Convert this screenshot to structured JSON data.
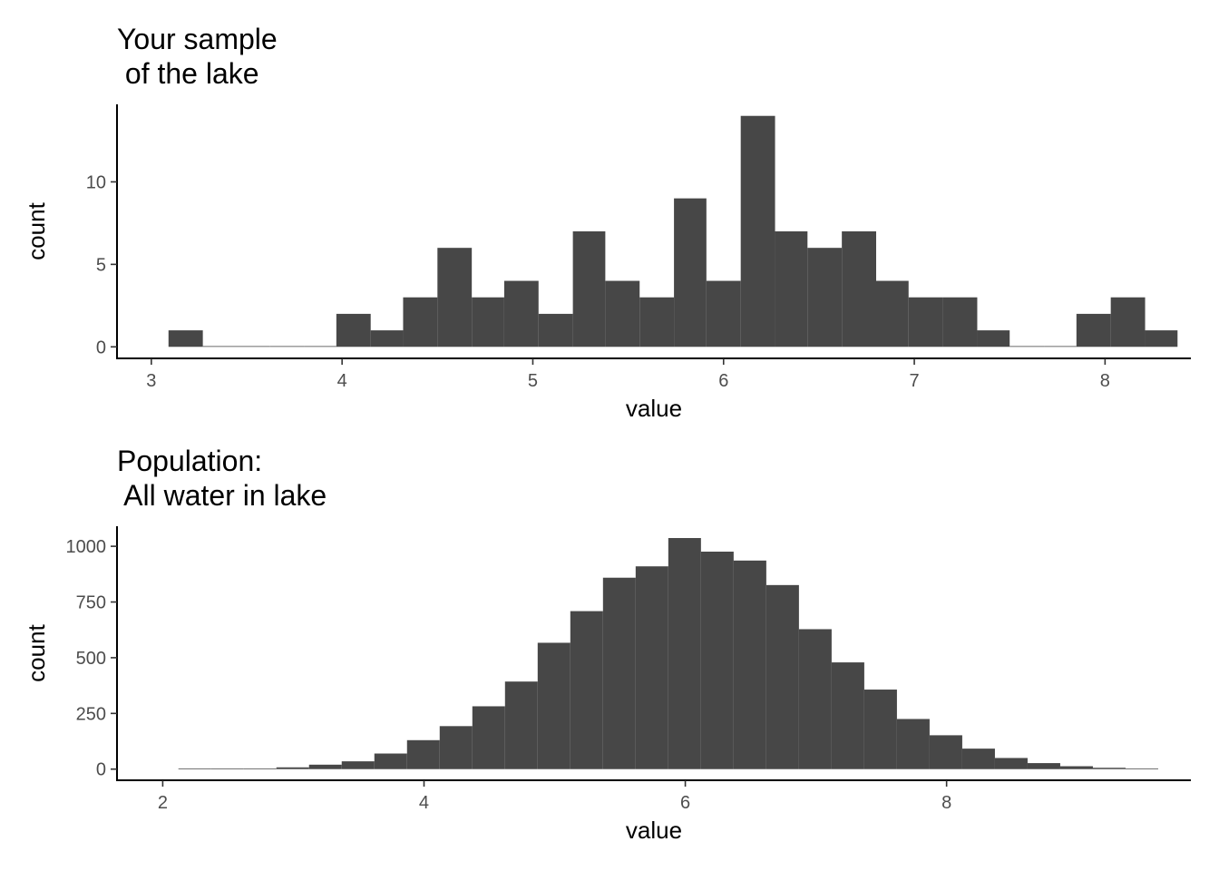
{
  "chart_data": [
    {
      "type": "bar",
      "title_line1": "Your sample",
      "title_line2": " of the lake",
      "xlabel": "value",
      "ylabel": "count",
      "xlim": [
        2.82,
        8.45
      ],
      "ylim": [
        -0.7,
        14.7
      ],
      "xticks": [
        3,
        4,
        5,
        6,
        7,
        8
      ],
      "yticks": [
        0,
        5,
        10
      ],
      "bar_color": "#474747",
      "bins": [
        {
          "x0": 3.09,
          "x1": 3.27,
          "count": 1
        },
        {
          "x0": 3.27,
          "x1": 3.45,
          "count": 0
        },
        {
          "x0": 3.45,
          "x1": 3.62,
          "count": 0
        },
        {
          "x0": 3.62,
          "x1": 3.8,
          "count": 0
        },
        {
          "x0": 3.8,
          "x1": 3.97,
          "count": 0
        },
        {
          "x0": 3.97,
          "x1": 4.15,
          "count": 2
        },
        {
          "x0": 4.15,
          "x1": 4.32,
          "count": 1
        },
        {
          "x0": 4.32,
          "x1": 4.5,
          "count": 3
        },
        {
          "x0": 4.5,
          "x1": 4.68,
          "count": 6
        },
        {
          "x0": 4.68,
          "x1": 4.85,
          "count": 3
        },
        {
          "x0": 4.85,
          "x1": 5.03,
          "count": 4
        },
        {
          "x0": 5.03,
          "x1": 5.21,
          "count": 2
        },
        {
          "x0": 5.21,
          "x1": 5.38,
          "count": 7
        },
        {
          "x0": 5.38,
          "x1": 5.56,
          "count": 4
        },
        {
          "x0": 5.56,
          "x1": 5.74,
          "count": 3
        },
        {
          "x0": 5.74,
          "x1": 5.91,
          "count": 9
        },
        {
          "x0": 5.91,
          "x1": 6.09,
          "count": 4
        },
        {
          "x0": 6.09,
          "x1": 6.27,
          "count": 14
        },
        {
          "x0": 6.27,
          "x1": 6.44,
          "count": 7
        },
        {
          "x0": 6.44,
          "x1": 6.62,
          "count": 6
        },
        {
          "x0": 6.62,
          "x1": 6.8,
          "count": 7
        },
        {
          "x0": 6.8,
          "x1": 6.97,
          "count": 4
        },
        {
          "x0": 6.97,
          "x1": 7.15,
          "count": 3
        },
        {
          "x0": 7.15,
          "x1": 7.33,
          "count": 3
        },
        {
          "x0": 7.33,
          "x1": 7.5,
          "count": 1
        },
        {
          "x0": 7.5,
          "x1": 7.68,
          "count": 0
        },
        {
          "x0": 7.68,
          "x1": 7.85,
          "count": 0
        },
        {
          "x0": 7.85,
          "x1": 8.03,
          "count": 2
        },
        {
          "x0": 8.03,
          "x1": 8.21,
          "count": 3
        },
        {
          "x0": 8.21,
          "x1": 8.38,
          "count": 1
        }
      ]
    },
    {
      "type": "bar",
      "title_line1": "Population:",
      "title_line2": " All water in lake",
      "xlabel": "value",
      "ylabel": "count",
      "xlim": [
        1.65,
        9.87
      ],
      "ylim": [
        -50,
        1090
      ],
      "xticks": [
        2,
        4,
        6,
        8
      ],
      "yticks": [
        0,
        250,
        500,
        750,
        1000
      ],
      "bar_color": "#474747",
      "bins": [
        {
          "x0": 2.12,
          "x1": 2.37,
          "count": 1
        },
        {
          "x0": 2.37,
          "x1": 2.62,
          "count": 1
        },
        {
          "x0": 2.62,
          "x1": 2.87,
          "count": 2
        },
        {
          "x0": 2.87,
          "x1": 3.12,
          "count": 8
        },
        {
          "x0": 3.12,
          "x1": 3.37,
          "count": 20
        },
        {
          "x0": 3.37,
          "x1": 3.62,
          "count": 35
        },
        {
          "x0": 3.62,
          "x1": 3.87,
          "count": 70
        },
        {
          "x0": 3.87,
          "x1": 4.12,
          "count": 130
        },
        {
          "x0": 4.12,
          "x1": 4.37,
          "count": 193
        },
        {
          "x0": 4.37,
          "x1": 4.62,
          "count": 282
        },
        {
          "x0": 4.62,
          "x1": 4.87,
          "count": 393
        },
        {
          "x0": 4.87,
          "x1": 5.12,
          "count": 567
        },
        {
          "x0": 5.12,
          "x1": 5.37,
          "count": 709
        },
        {
          "x0": 5.37,
          "x1": 5.62,
          "count": 859
        },
        {
          "x0": 5.62,
          "x1": 5.87,
          "count": 910
        },
        {
          "x0": 5.87,
          "x1": 6.12,
          "count": 1037
        },
        {
          "x0": 6.12,
          "x1": 6.37,
          "count": 976
        },
        {
          "x0": 6.37,
          "x1": 6.62,
          "count": 936
        },
        {
          "x0": 6.62,
          "x1": 6.87,
          "count": 826
        },
        {
          "x0": 6.87,
          "x1": 7.12,
          "count": 628
        },
        {
          "x0": 7.12,
          "x1": 7.37,
          "count": 479
        },
        {
          "x0": 7.37,
          "x1": 7.62,
          "count": 357
        },
        {
          "x0": 7.62,
          "x1": 7.87,
          "count": 225
        },
        {
          "x0": 7.87,
          "x1": 8.12,
          "count": 152
        },
        {
          "x0": 8.12,
          "x1": 8.37,
          "count": 92
        },
        {
          "x0": 8.37,
          "x1": 8.62,
          "count": 50
        },
        {
          "x0": 8.62,
          "x1": 8.87,
          "count": 27
        },
        {
          "x0": 8.87,
          "x1": 9.12,
          "count": 13
        },
        {
          "x0": 9.12,
          "x1": 9.37,
          "count": 6
        },
        {
          "x0": 9.37,
          "x1": 9.62,
          "count": 3
        }
      ]
    }
  ]
}
